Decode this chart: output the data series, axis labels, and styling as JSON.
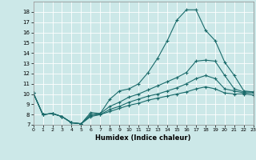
{
  "title": "",
  "xlabel": "Humidex (Indice chaleur)",
  "bg_color": "#cce8e8",
  "grid_color": "#ffffff",
  "line_color": "#1a6b6b",
  "xlim": [
    0,
    23
  ],
  "ylim": [
    7,
    19
  ],
  "xticks": [
    0,
    1,
    2,
    3,
    4,
    5,
    6,
    7,
    8,
    9,
    10,
    11,
    12,
    13,
    14,
    15,
    16,
    17,
    18,
    19,
    20,
    21,
    22,
    23
  ],
  "yticks": [
    7,
    8,
    9,
    10,
    11,
    12,
    13,
    14,
    15,
    16,
    17,
    18
  ],
  "series": [
    {
      "x": [
        0,
        1,
        2,
        3,
        4,
        5,
        6,
        7,
        8,
        9,
        10,
        11,
        12,
        13,
        14,
        15,
        16,
        17,
        18,
        19,
        20,
        21,
        22,
        23
      ],
      "y": [
        10.1,
        8.0,
        8.1,
        7.8,
        7.2,
        7.1,
        8.2,
        8.1,
        9.5,
        10.3,
        10.5,
        11.0,
        12.1,
        13.5,
        15.2,
        17.2,
        18.2,
        18.2,
        16.2,
        15.2,
        13.1,
        11.8,
        10.3,
        10.2
      ]
    },
    {
      "x": [
        0,
        1,
        2,
        3,
        4,
        5,
        6,
        7,
        8,
        9,
        10,
        11,
        12,
        13,
        14,
        15,
        16,
        17,
        18,
        19,
        20,
        21,
        22,
        23
      ],
      "y": [
        10.1,
        8.0,
        8.1,
        7.8,
        7.2,
        7.1,
        8.0,
        8.1,
        8.8,
        9.2,
        9.7,
        10.0,
        10.4,
        10.8,
        11.2,
        11.6,
        12.1,
        13.2,
        13.3,
        13.2,
        11.8,
        10.5,
        10.2,
        10.2
      ]
    },
    {
      "x": [
        0,
        1,
        2,
        3,
        4,
        5,
        6,
        7,
        8,
        9,
        10,
        11,
        12,
        13,
        14,
        15,
        16,
        17,
        18,
        19,
        20,
        21,
        22,
        23
      ],
      "y": [
        10.1,
        8.0,
        8.1,
        7.8,
        7.2,
        7.1,
        7.9,
        8.0,
        8.5,
        8.8,
        9.2,
        9.5,
        9.8,
        10.0,
        10.3,
        10.6,
        11.0,
        11.5,
        11.8,
        11.5,
        10.5,
        10.3,
        10.1,
        10.1
      ]
    },
    {
      "x": [
        0,
        1,
        2,
        3,
        4,
        5,
        6,
        7,
        8,
        9,
        10,
        11,
        12,
        13,
        14,
        15,
        16,
        17,
        18,
        19,
        20,
        21,
        22,
        23
      ],
      "y": [
        10.1,
        8.0,
        8.1,
        7.8,
        7.2,
        7.1,
        7.8,
        8.0,
        8.3,
        8.6,
        8.9,
        9.1,
        9.4,
        9.6,
        9.8,
        10.0,
        10.2,
        10.5,
        10.7,
        10.5,
        10.1,
        10.0,
        10.0,
        9.9
      ]
    }
  ]
}
